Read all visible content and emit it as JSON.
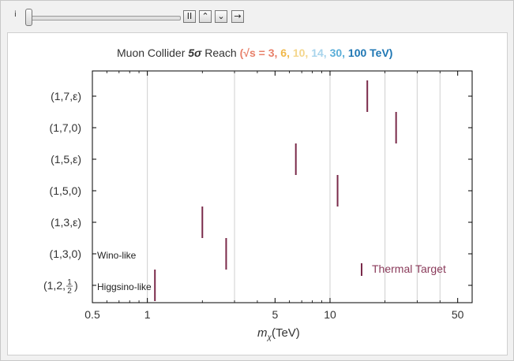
{
  "controls": {
    "slider_label": "i",
    "pause_label": "II",
    "faster_label": "⌃",
    "slower_label": "⌄",
    "step_label": "→"
  },
  "chart_data": {
    "type": "scatter",
    "title": {
      "prefix": "Muon Collider ",
      "sigma": "5σ",
      "suffix": " Reach ",
      "energy_open": "(√s = ",
      "energies": [
        {
          "label": "3",
          "color": "#e8806a"
        },
        {
          "label": "6",
          "color": "#f0b84a"
        },
        {
          "label": "10",
          "color": "#f4d68c"
        },
        {
          "label": "14",
          "color": "#a8d4ec"
        },
        {
          "label": "30",
          "color": "#5aaed8"
        },
        {
          "label": "100 TeV)",
          "color": "#1f77b4"
        }
      ],
      "separator": ", "
    },
    "xlabel": "m_χ(TeV)",
    "xlabel_main": "m",
    "xlabel_sub": "χ",
    "xlabel_unit": "(TeV)",
    "xscale": "log",
    "xlim": [
      0.5,
      60
    ],
    "xticks": [
      {
        "value": 0.5,
        "label": "0.5"
      },
      {
        "value": 1,
        "label": "1"
      },
      {
        "value": 5,
        "label": "5"
      },
      {
        "value": 10,
        "label": "10"
      },
      {
        "value": 50,
        "label": "50"
      }
    ],
    "gridlines_x": [
      1,
      3,
      10,
      20,
      30,
      40
    ],
    "categories": [
      "(1,2,1/2)",
      "(1,3,0)",
      "(1,3,ε)",
      "(1,5,0)",
      "(1,5,ε)",
      "(1,7,0)",
      "(1,7,ε)"
    ],
    "category_labels": [
      "(1,2,",
      "(1,3,0)",
      "(1,3,ε)",
      "(1,5,0)",
      "(1,5,ε)",
      "(1,7,0)",
      "(1,7,ε)"
    ],
    "half_fraction": {
      "num": "1",
      "den": "2"
    },
    "series": [
      {
        "name": "Thermal Target",
        "color": "#7a2a4a",
        "points": [
          {
            "category": "(1,2,1/2)",
            "x": 1.1
          },
          {
            "category": "(1,3,0)",
            "x": 2.7
          },
          {
            "category": "(1,3,ε)",
            "x": 2.0
          },
          {
            "category": "(1,5,0)",
            "x": 11.0
          },
          {
            "category": "(1,5,ε)",
            "x": 6.5
          },
          {
            "category": "(1,7,0)",
            "x": 23.0
          },
          {
            "category": "(1,7,ε)",
            "x": 16.0
          }
        ]
      }
    ],
    "annotations": [
      {
        "category": "(1,3,0)",
        "text": "Wino-like"
      },
      {
        "category": "(1,2,1/2)",
        "text": "Higgsino-like"
      }
    ],
    "legend": {
      "position": "bottom-right",
      "label": "Thermal Target"
    }
  }
}
